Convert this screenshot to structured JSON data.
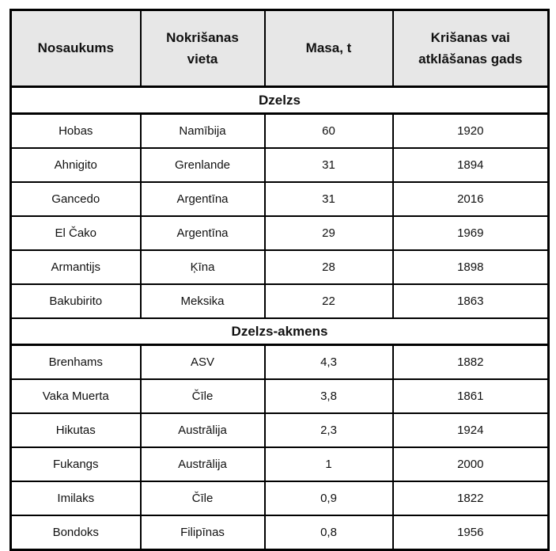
{
  "table": {
    "columns": [
      {
        "label": "Nosaukums"
      },
      {
        "label": "Nokrišanas\nvieta"
      },
      {
        "label": "Masa, t"
      },
      {
        "label": "Krišanas vai\natklāšanas gads"
      }
    ],
    "sections": [
      {
        "title": "Dzelzs",
        "rows": [
          [
            "Hobas",
            "Namībija",
            "60",
            "1920"
          ],
          [
            "Ahnigito",
            "Grenlande",
            "31",
            "1894"
          ],
          [
            "Gancedo",
            "Argentīna",
            "31",
            "2016"
          ],
          [
            "El Čako",
            "Argentīna",
            "29",
            "1969"
          ],
          [
            "Armantijs",
            "Ķīna",
            "28",
            "1898"
          ],
          [
            "Bakubirito",
            "Meksika",
            "22",
            "1863"
          ]
        ]
      },
      {
        "title": "Dzelzs-akmens",
        "rows": [
          [
            "Brenhams",
            "ASV",
            "4,3",
            "1882"
          ],
          [
            "Vaka Muerta",
            "Čīle",
            "3,8",
            "1861"
          ],
          [
            "Hikutas",
            "Austrālija",
            "2,3",
            "1924"
          ],
          [
            "Fukangs",
            "Austrālija",
            "1",
            "2000"
          ],
          [
            "Imilaks",
            "Čīle",
            "0,9",
            "1822"
          ],
          [
            "Bondoks",
            "Filipīnas",
            "0,8",
            "1956"
          ]
        ]
      }
    ],
    "colors": {
      "header_bg": "#e7e7e7",
      "border": "#000000",
      "text": "#111111"
    }
  }
}
